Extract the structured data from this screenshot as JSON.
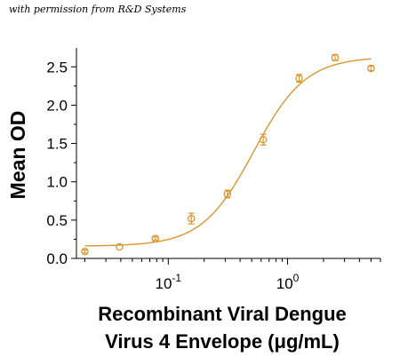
{
  "credit": "with permission from R&D Systems",
  "chart_data": {
    "type": "scatter",
    "xscale": "log",
    "xlim": [
      0.017,
      6.0
    ],
    "ylim": [
      0.0,
      2.7
    ],
    "xlabel_line1": "Recombinant Viral Dengue",
    "xlabel_line2": "Virus 4 Envelope (μg/mL)",
    "ylabel": "Mean OD",
    "x_ticks": [
      {
        "value": 0.1,
        "base": "10",
        "exp": "-1"
      },
      {
        "value": 1,
        "base": "10",
        "exp": "0"
      }
    ],
    "y_ticks": [
      "0.0",
      "0.5",
      "1.0",
      "1.5",
      "2.0",
      "2.5"
    ],
    "grid": false,
    "color": "#d9962f",
    "points": [
      {
        "x": 0.02,
        "y": 0.09,
        "err": 0.02
      },
      {
        "x": 0.039,
        "y": 0.15,
        "err": 0.0
      },
      {
        "x": 0.078,
        "y": 0.26,
        "err": 0.02
      },
      {
        "x": 0.156,
        "y": 0.52,
        "err": 0.07
      },
      {
        "x": 0.313,
        "y": 0.84,
        "err": 0.05
      },
      {
        "x": 0.625,
        "y": 1.55,
        "err": 0.07
      },
      {
        "x": 1.25,
        "y": 2.35,
        "err": 0.05
      },
      {
        "x": 2.5,
        "y": 2.62,
        "err": 0.04
      },
      {
        "x": 5.0,
        "y": 2.48,
        "err": 0.03
      }
    ],
    "fit": {
      "bottom": 0.16,
      "top": 2.63,
      "ec50": 0.52,
      "hill": 2.0
    }
  }
}
